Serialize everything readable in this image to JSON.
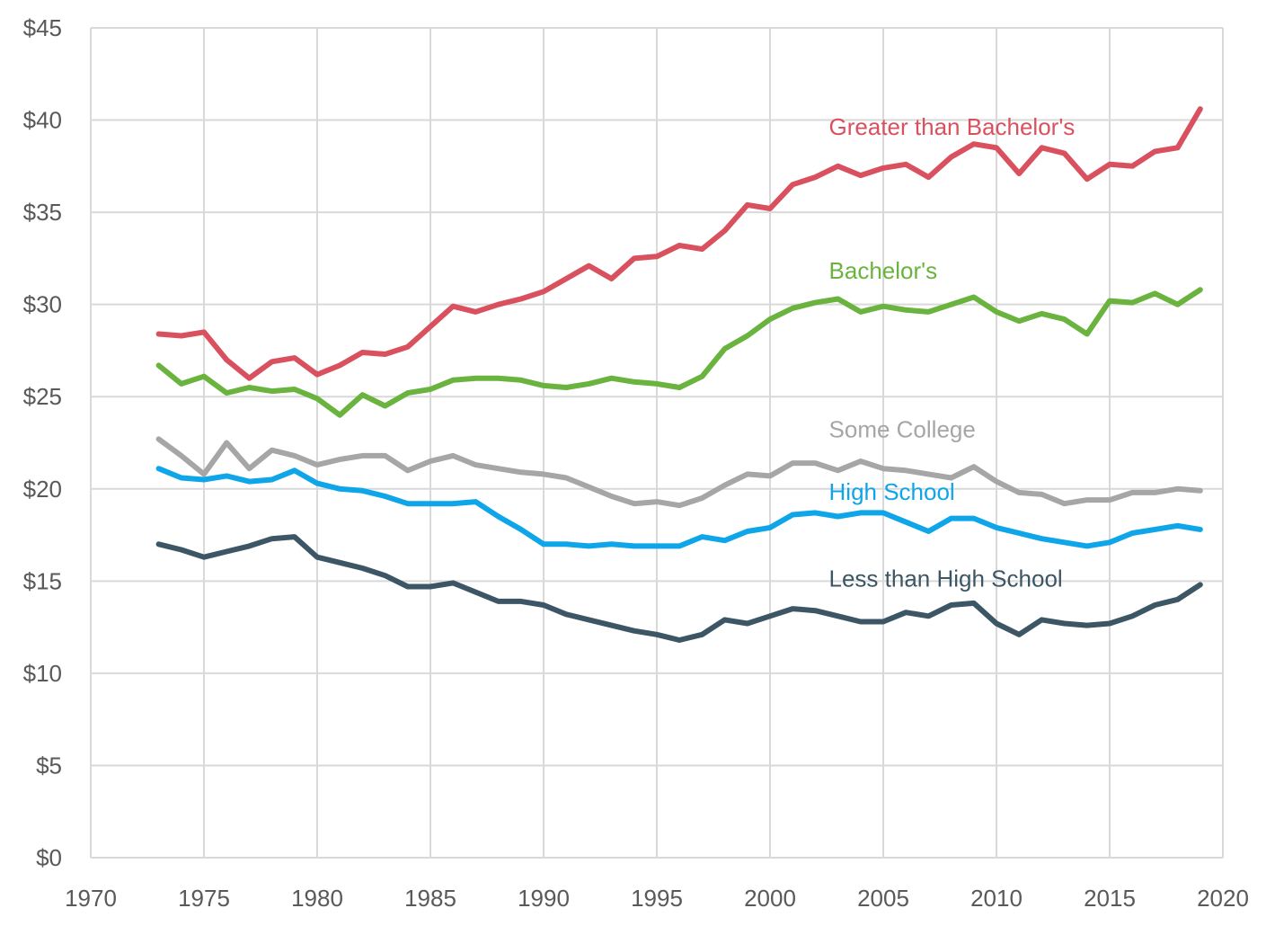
{
  "chart_data": {
    "type": "line",
    "title": "",
    "xlabel": "",
    "ylabel": "",
    "xlim": [
      1970,
      2020
    ],
    "ylim": [
      0,
      45
    ],
    "grid": true,
    "legend": "inline labels near lines",
    "x_ticks": [
      "1970",
      "1975",
      "1980",
      "1985",
      "1990",
      "1995",
      "2000",
      "2005",
      "2010",
      "2015",
      "2020"
    ],
    "y_ticks": [
      "$0",
      "$5",
      "$10",
      "$15",
      "$20",
      "$25",
      "$30",
      "$35",
      "$40",
      "$45"
    ],
    "x": [
      1973,
      1974,
      1975,
      1976,
      1977,
      1978,
      1979,
      1980,
      1981,
      1982,
      1983,
      1984,
      1985,
      1986,
      1987,
      1988,
      1989,
      1990,
      1991,
      1992,
      1993,
      1994,
      1995,
      1996,
      1997,
      1998,
      1999,
      2000,
      2001,
      2002,
      2003,
      2004,
      2005,
      2006,
      2007,
      2008,
      2009,
      2010,
      2011,
      2012,
      2013,
      2014,
      2015,
      2016,
      2017,
      2018,
      2019
    ],
    "series": [
      {
        "name": "Greater than Bachelor's",
        "color": "#d9515e",
        "values": [
          28.4,
          28.3,
          28.5,
          27.0,
          26.0,
          26.9,
          27.1,
          26.2,
          26.7,
          27.4,
          27.3,
          27.7,
          28.8,
          29.9,
          29.6,
          30.0,
          30.3,
          30.7,
          31.4,
          32.1,
          31.4,
          32.5,
          32.6,
          33.2,
          33.0,
          34.0,
          35.4,
          35.2,
          36.5,
          36.9,
          37.5,
          37.0,
          37.4,
          37.6,
          36.9,
          38.0,
          38.7,
          38.5,
          37.1,
          38.5,
          38.2,
          36.8,
          37.6,
          37.5,
          38.3,
          38.5,
          40.6
        ],
        "label_pos": [
          2002.6,
          39.2
        ]
      },
      {
        "name": "Bachelor's",
        "color": "#69b33e",
        "values": [
          26.7,
          25.7,
          26.1,
          25.2,
          25.5,
          25.3,
          25.4,
          24.9,
          24.0,
          25.1,
          24.5,
          25.2,
          25.4,
          25.9,
          26.0,
          26.0,
          25.9,
          25.6,
          25.5,
          25.7,
          26.0,
          25.8,
          25.7,
          25.5,
          26.1,
          27.6,
          28.3,
          29.2,
          29.8,
          30.1,
          30.3,
          29.6,
          29.9,
          29.7,
          29.6,
          30.0,
          30.4,
          29.6,
          29.1,
          29.5,
          29.2,
          28.4,
          30.2,
          30.1,
          30.6,
          30.0,
          30.8
        ],
        "label_pos": [
          2002.6,
          31.4
        ]
      },
      {
        "name": "Some College",
        "color": "#a6a6a6",
        "values": [
          22.7,
          21.8,
          20.8,
          22.5,
          21.1,
          22.1,
          21.8,
          21.3,
          21.6,
          21.8,
          21.8,
          21.0,
          21.5,
          21.8,
          21.3,
          21.1,
          20.9,
          20.8,
          20.6,
          20.1,
          19.6,
          19.2,
          19.3,
          19.1,
          19.5,
          20.2,
          20.8,
          20.7,
          21.4,
          21.4,
          21.0,
          21.5,
          21.1,
          21.0,
          20.8,
          20.6,
          21.2,
          20.4,
          19.8,
          19.7,
          19.2,
          19.4,
          19.4,
          19.8,
          19.8,
          20.0,
          19.9
        ],
        "label_pos": [
          2002.6,
          22.8
        ]
      },
      {
        "name": "High School",
        "color": "#0ea5e9",
        "values": [
          21.1,
          20.6,
          20.5,
          20.7,
          20.4,
          20.5,
          21.0,
          20.3,
          20.0,
          19.9,
          19.6,
          19.2,
          19.2,
          19.2,
          19.3,
          18.5,
          17.8,
          17.0,
          17.0,
          16.9,
          17.0,
          16.9,
          16.9,
          16.9,
          17.4,
          17.2,
          17.7,
          17.9,
          18.6,
          18.7,
          18.5,
          18.7,
          18.7,
          18.2,
          17.7,
          18.4,
          18.4,
          17.9,
          17.6,
          17.3,
          17.1,
          16.9,
          17.1,
          17.6,
          17.8,
          18.0,
          17.8
        ],
        "label_pos": [
          2002.6,
          19.4
        ]
      },
      {
        "name": "Less than High School",
        "color": "#3d5665",
        "values": [
          17.0,
          16.7,
          16.3,
          16.6,
          16.9,
          17.3,
          17.4,
          16.3,
          16.0,
          15.7,
          15.3,
          14.7,
          14.7,
          14.9,
          14.4,
          13.9,
          13.9,
          13.7,
          13.2,
          12.9,
          12.6,
          12.3,
          12.1,
          11.8,
          12.1,
          12.9,
          12.7,
          13.1,
          13.5,
          13.4,
          13.1,
          12.8,
          12.8,
          13.3,
          13.1,
          13.7,
          13.8,
          12.7,
          12.1,
          12.9,
          12.7,
          12.6,
          12.7,
          13.1,
          13.7,
          14.0,
          14.8
        ],
        "label_pos": [
          2002.6,
          14.7
        ]
      }
    ]
  }
}
